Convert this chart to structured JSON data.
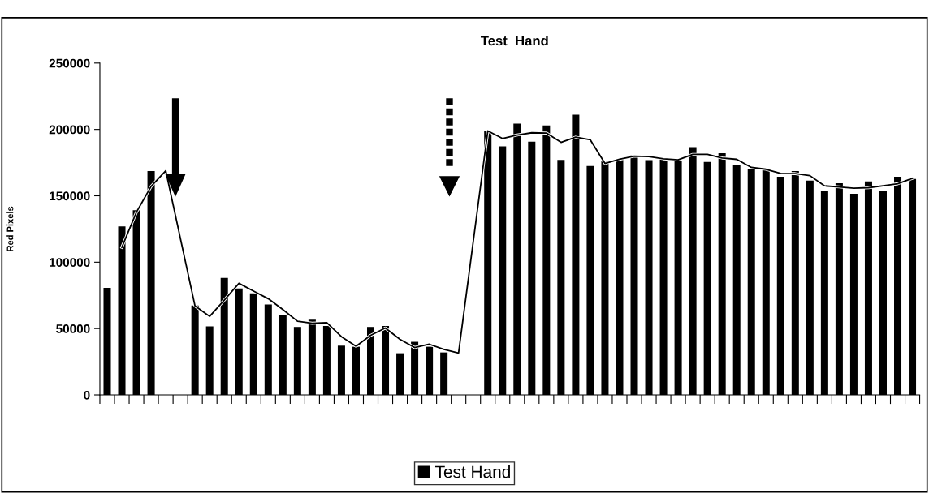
{
  "chart_data": {
    "type": "bar",
    "title": "Test  Hand",
    "ylabel": "Red Pixels",
    "categories": [
      null,
      null,
      null,
      null,
      null,
      null,
      null,
      null,
      null,
      null,
      null,
      null,
      null,
      null,
      null,
      null,
      null,
      null,
      null,
      null,
      null,
      null,
      null,
      null,
      null,
      null,
      null,
      null,
      null,
      null,
      null,
      null,
      null,
      null,
      null,
      null,
      null,
      null,
      null,
      null,
      null,
      null,
      null,
      null,
      null,
      null,
      null,
      null,
      null,
      null,
      null,
      null,
      null,
      null,
      null,
      null
    ],
    "series": [
      {
        "name": "Test Hand",
        "color": "#000000",
        "values": [
          80600,
          126900,
          139200,
          168700,
          null,
          null,
          67300,
          51600,
          88100,
          80200,
          76500,
          68200,
          60000,
          51200,
          56600,
          52000,
          37100,
          36300,
          51200,
          52000,
          31400,
          40000,
          36300,
          32000,
          null,
          null,
          198900,
          187300,
          204400,
          190800,
          203000,
          177100,
          211100,
          172400,
          175900,
          177500,
          180500,
          176900,
          178100,
          175900,
          186700,
          175500,
          182000,
          173400,
          170400,
          169800,
          164400,
          168700,
          161400,
          153600,
          159500,
          151600,
          160800,
          154000,
          164400,
          162600
        ]
      },
      {
        "type": "line",
        "color": "#000000",
        "marker": "none",
        "line_style": "solid",
        "values": [
          null,
          111200,
          137700,
          157100,
          168900,
          null,
          67000,
          59200,
          71400,
          84100,
          78200,
          72500,
          64300,
          55500,
          54000,
          54500,
          43900,
          36700,
          44900,
          50400,
          41900,
          35700,
          38200,
          34300,
          31600,
          null,
          198900,
          193200,
          195800,
          197500,
          197300,
          190300,
          194200,
          192200,
          174400,
          177500,
          179900,
          179600,
          177900,
          177100,
          181200,
          181200,
          178500,
          177500,
          171400,
          170000,
          166900,
          166700,
          165200,
          157500,
          156700,
          155700,
          156100,
          157500,
          159100,
          163200
        ]
      }
    ],
    "ylim": [
      0,
      250000
    ],
    "yticks": [
      0,
      50000,
      100000,
      150000,
      200000,
      250000
    ],
    "grid": false,
    "legend": "bottom",
    "tick_labels": "y"
  }
}
